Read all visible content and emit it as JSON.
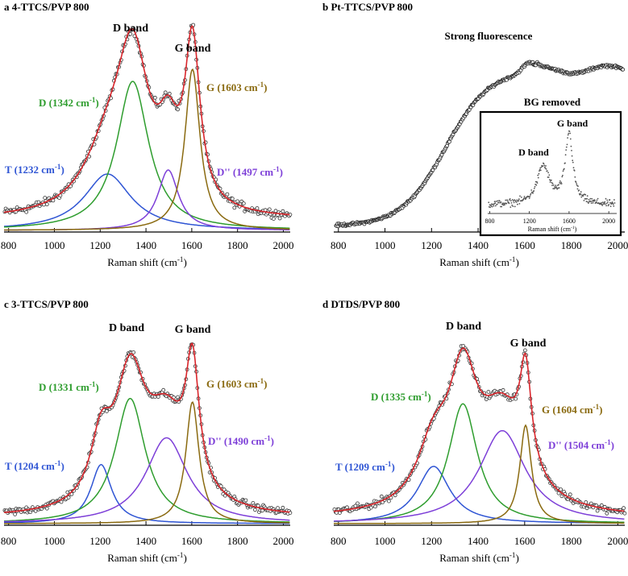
{
  "chart_data": [
    {
      "type": "line",
      "title": "a 4-TTCS/PVP 800",
      "xlabel": "Raman shift (cm⁻¹)",
      "ylabel": "",
      "xlim": [
        780,
        2030
      ],
      "xticks": [
        800,
        1000,
        1200,
        1400,
        1600,
        1800,
        2000
      ],
      "band_labels": {
        "d": "D band",
        "g": "G band"
      },
      "peaks": [
        {
          "name": "T",
          "label": "T (1232 cm⁻¹)",
          "center": 1232,
          "fwhm": 250,
          "height": 0.28,
          "color": "#2f55d4"
        },
        {
          "name": "D",
          "label": "D (1342 cm⁻¹)",
          "center": 1342,
          "fwhm": 170,
          "height": 0.74,
          "color": "#2e9d2e"
        },
        {
          "name": "D''",
          "label": "D'' (1497 cm⁻¹)",
          "center": 1497,
          "fwhm": 110,
          "height": 0.3,
          "color": "#7d3fd8"
        },
        {
          "name": "G",
          "label": "G (1603 cm⁻¹)",
          "center": 1603,
          "fwhm": 80,
          "height": 0.8,
          "color": "#8a6a10"
        }
      ]
    },
    {
      "type": "line",
      "title": "b Pt-TTCS/PVP 800",
      "xlabel": "Raman shift (cm⁻¹)",
      "ylabel": "",
      "xlim": [
        780,
        2030
      ],
      "xticks": [
        800,
        1000,
        1200,
        1400,
        1600,
        1800,
        2000
      ],
      "annotation": "Strong fluorescence",
      "inset": {
        "title": "BG removed",
        "xlim": [
          780,
          2080
        ],
        "xticks": [
          800,
          1200,
          1600,
          2000
        ],
        "xlabel": "Raman shift (cm⁻¹)",
        "band_labels": {
          "d": "D band",
          "g": "G band"
        },
        "peaks": [
          {
            "name": "D",
            "center": 1340,
            "fwhm": 150,
            "height": 0.5
          },
          {
            "name": "G",
            "center": 1600,
            "fwhm": 90,
            "height": 0.92
          }
        ]
      }
    },
    {
      "type": "line",
      "title": "c 3-TTCS/PVP 800",
      "xlabel": "Raman shift (cm⁻¹)",
      "ylabel": "",
      "xlim": [
        780,
        2030
      ],
      "xticks": [
        800,
        1000,
        1200,
        1400,
        1600,
        1800,
        2000
      ],
      "band_labels": {
        "d": "D band",
        "g": "G band"
      },
      "peaks": [
        {
          "name": "T",
          "label": "T (1204 cm⁻¹)",
          "center": 1204,
          "fwhm": 110,
          "height": 0.33,
          "color": "#2f55d4"
        },
        {
          "name": "D",
          "label": "D (1331 cm⁻¹)",
          "center": 1331,
          "fwhm": 160,
          "height": 0.7,
          "color": "#2e9d2e"
        },
        {
          "name": "D''",
          "label": "D'' (1490 cm⁻¹)",
          "center": 1490,
          "fwhm": 220,
          "height": 0.48,
          "color": "#7d3fd8"
        },
        {
          "name": "G",
          "label": "G (1603 cm⁻¹)",
          "center": 1603,
          "fwhm": 70,
          "height": 0.68,
          "color": "#8a6a10"
        }
      ]
    },
    {
      "type": "line",
      "title": "d DTDS/PVP 800",
      "xlabel": "Raman shift (cm⁻¹)",
      "ylabel": "",
      "xlim": [
        780,
        2030
      ],
      "xticks": [
        800,
        1000,
        1200,
        1400,
        1600,
        1800,
        2000
      ],
      "band_labels": {
        "d": "D band",
        "g": "G band"
      },
      "peaks": [
        {
          "name": "T",
          "label": "T (1209 cm⁻¹)",
          "center": 1209,
          "fwhm": 170,
          "height": 0.32,
          "color": "#2f55d4"
        },
        {
          "name": "D",
          "label": "D (1335 cm⁻¹)",
          "center": 1335,
          "fwhm": 150,
          "height": 0.67,
          "color": "#2e9d2e"
        },
        {
          "name": "D''",
          "label": "D'' (1504 cm⁻¹)",
          "center": 1504,
          "fwhm": 240,
          "height": 0.52,
          "color": "#7d3fd8"
        },
        {
          "name": "G",
          "label": "G (1604 cm⁻¹)",
          "center": 1604,
          "fwhm": 60,
          "height": 0.55,
          "color": "#8a6a10"
        }
      ]
    }
  ]
}
